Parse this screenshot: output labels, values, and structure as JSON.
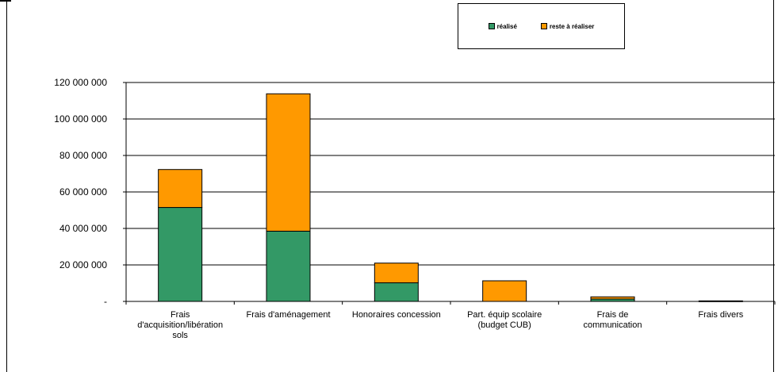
{
  "chart_data": {
    "type": "bar",
    "stacked": true,
    "categories": [
      [
        "Frais",
        "d'acquisition/libération",
        "sols"
      ],
      [
        "Frais d'aménagement"
      ],
      [
        "Honoraires concession"
      ],
      [
        "Part. équip scolaire",
        "(budget CUB)"
      ],
      [
        "Frais de",
        "communication"
      ],
      [
        "Frais divers"
      ]
    ],
    "series": [
      {
        "name": "réalisé",
        "color": "#339966",
        "values": [
          51500000,
          38500000,
          10200000,
          0,
          1300000,
          300000
        ]
      },
      {
        "name": "reste à réaliser",
        "color": "#ff9900",
        "values": [
          20800000,
          75300000,
          10800000,
          11300000,
          1200000,
          0
        ]
      }
    ],
    "yticks": [
      "-",
      "20 000 000",
      "40 000 000",
      "60 000 000",
      "80 000 000",
      "100 000 000",
      "120 000 000"
    ],
    "ylim": [
      0,
      120000000
    ],
    "grid": true,
    "legend_position": "top-right"
  }
}
